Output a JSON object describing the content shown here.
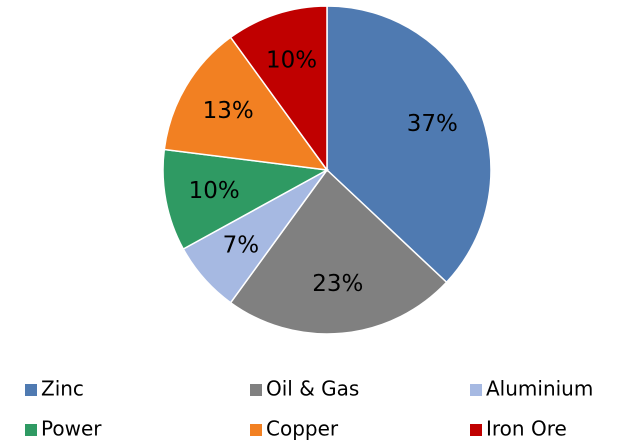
{
  "chart_data": {
    "type": "pie",
    "categories": [
      "Zinc",
      "Oil & Gas",
      "Aluminium",
      "Power",
      "Copper",
      "Iron Ore"
    ],
    "values": [
      37,
      23,
      7,
      10,
      13,
      10
    ],
    "value_labels": [
      "37%",
      "23%",
      "7%",
      "10%",
      "13%",
      "10%"
    ],
    "colors": [
      "#4f7ab1",
      "#808080",
      "#a6b9e2",
      "#2f9a63",
      "#f28022",
      "#c00000"
    ],
    "legend": "bottom"
  }
}
